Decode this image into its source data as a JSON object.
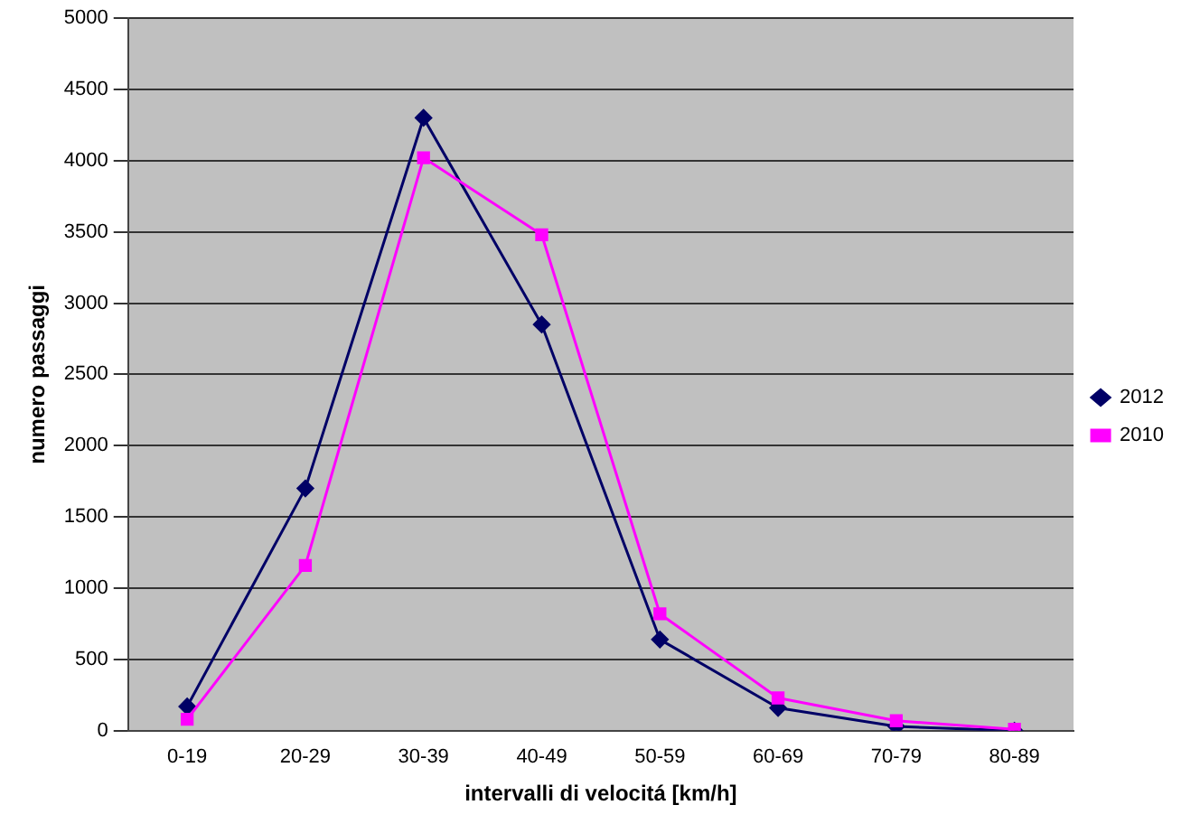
{
  "chart_data": {
    "type": "line",
    "xlabel": "intervalli di velocitá [km/h]",
    "ylabel": "numero passaggi",
    "categories": [
      "0-19",
      "20-29",
      "30-39",
      "40-49",
      "50-59",
      "60-69",
      "70-79",
      "80-89"
    ],
    "series": [
      {
        "name": "2012",
        "color": "#000066",
        "marker": "diamond",
        "values": [
          170,
          1700,
          4300,
          2850,
          640,
          160,
          30,
          0
        ]
      },
      {
        "name": "2010",
        "color": "#ff00ff",
        "marker": "square",
        "values": [
          80,
          1160,
          4020,
          3480,
          820,
          230,
          70,
          10
        ]
      }
    ],
    "ylim": [
      0,
      5000
    ],
    "yticks": [
      0,
      500,
      1000,
      1500,
      2000,
      2500,
      3000,
      3500,
      4000,
      4500,
      5000
    ],
    "grid": "y",
    "legend": "right",
    "line_style": "solid"
  }
}
